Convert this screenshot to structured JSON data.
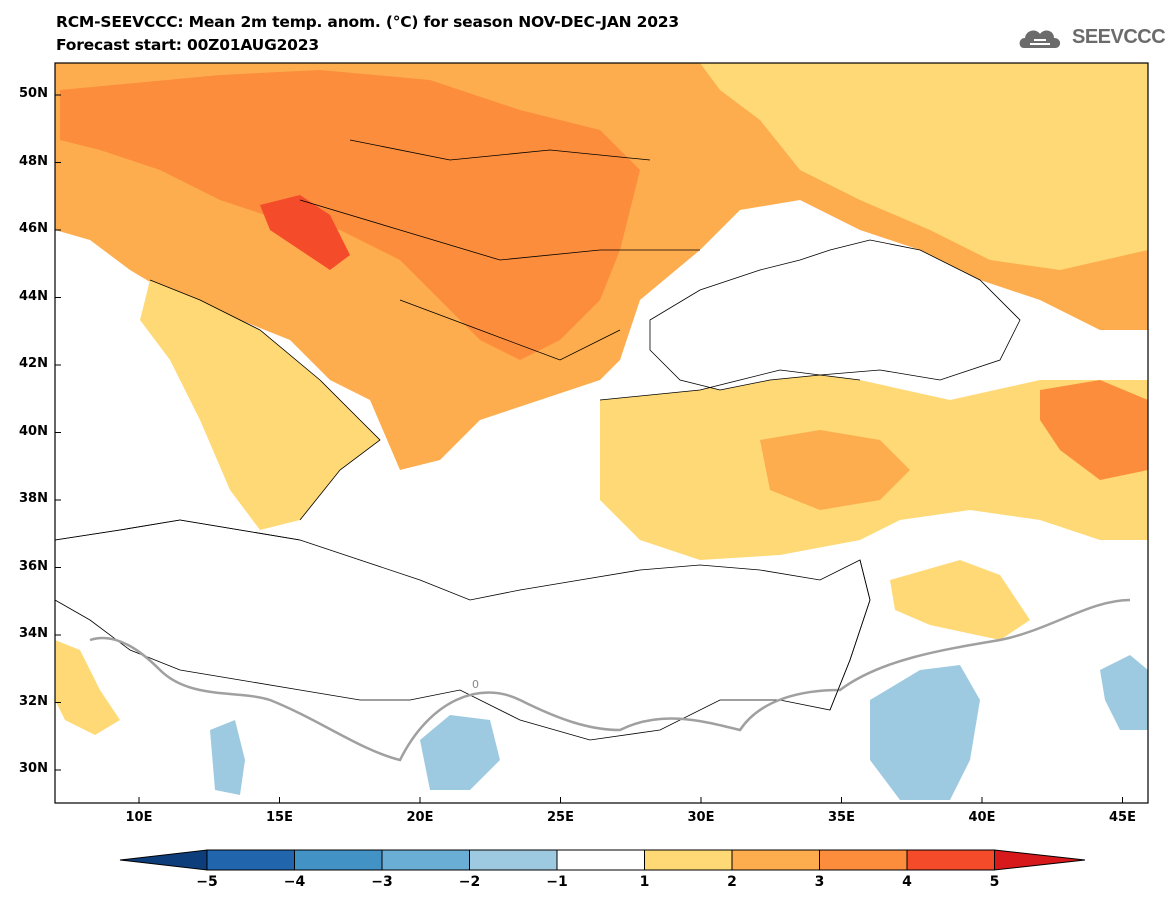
{
  "header": {
    "title": "RCM-SEEVCCC: Mean 2m temp. anom. (°C) for season NOV-DEC-JAN 2023",
    "subtitle": "Forecast start: 00Z01AUG2023",
    "logo_text": "SEEVCCC",
    "logo_icon": "cloud-icon"
  },
  "map": {
    "lat_labels": [
      "50N",
      "48N",
      "46N",
      "44N",
      "42N",
      "40N",
      "38N",
      "36N",
      "34N",
      "32N",
      "30N"
    ],
    "lon_labels": [
      "10E",
      "15E",
      "20E",
      "25E",
      "30E",
      "35E",
      "40E",
      "45E"
    ],
    "contour_label": "0"
  },
  "colorbar": {
    "labels": [
      "−5",
      "−4",
      "−3",
      "−2",
      "−1",
      "1",
      "2",
      "3",
      "4",
      "5"
    ],
    "colors": [
      "#0d3d7a",
      "#2166ac",
      "#4292c6",
      "#6aaed6",
      "#9ecae1",
      "#ffffff",
      "#fed976",
      "#fdad4e",
      "#fc8d3c",
      "#f44b2a",
      "#d7191c"
    ]
  }
}
